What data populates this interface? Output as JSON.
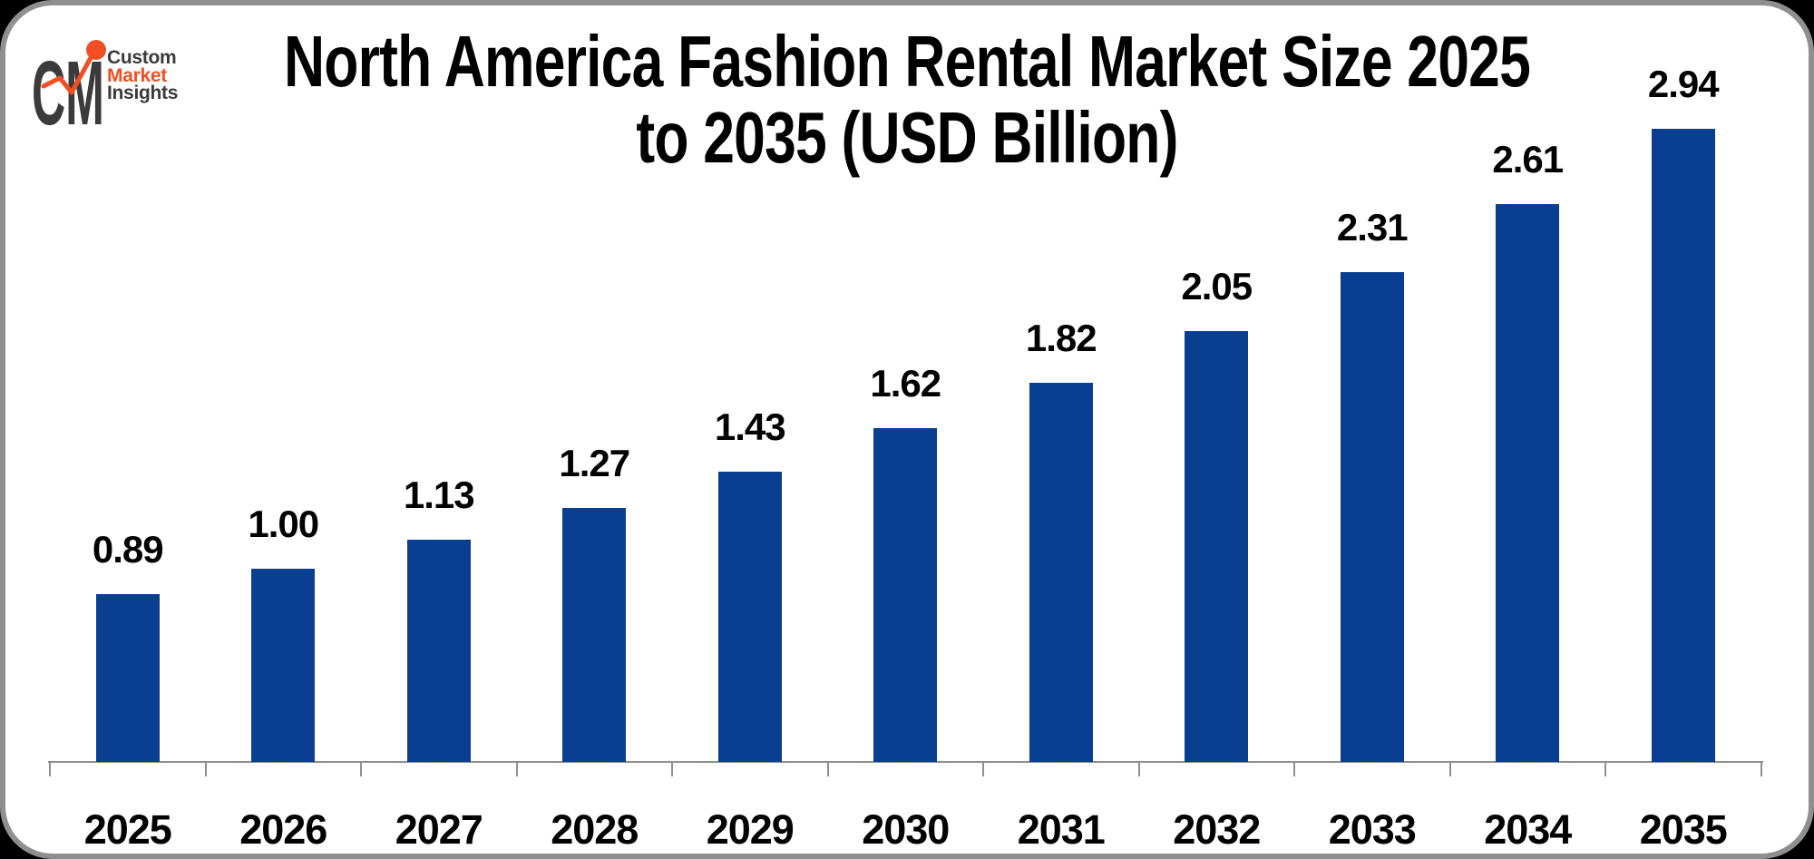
{
  "logo": {
    "monogram": "CM",
    "lines": [
      "Custom",
      "Market",
      "Insights"
    ]
  },
  "title": {
    "lines": [
      "North America Fashion Rental Market Size 2025",
      "to 2035 (USD Billion)"
    ]
  },
  "colors": {
    "bar": "#0a3e91",
    "axis_line": "#8f8f8f",
    "title_text": "#000000",
    "logo_dark": "#3b3b3b",
    "logo_orange": "#f04e23",
    "card_border": "#8f8f8f",
    "background": "#ffffff"
  },
  "chart_data": {
    "type": "bar",
    "title": "North America Fashion Rental Market Size 2025 to 2035 (USD Billion)",
    "unit": "USD Billion",
    "categories": [
      "2025",
      "2026",
      "2027",
      "2028",
      "2029",
      "2030",
      "2031",
      "2032",
      "2033",
      "2034",
      "2035"
    ],
    "values": [
      0.89,
      1.0,
      1.13,
      1.27,
      1.43,
      1.62,
      1.82,
      2.05,
      2.31,
      2.61,
      2.94
    ],
    "data_labels": [
      "0.89",
      "1.00",
      "1.13",
      "1.27",
      "1.43",
      "1.62",
      "1.82",
      "2.05",
      "2.31",
      "2.61",
      "2.94"
    ],
    "xlabel": "",
    "ylabel": "",
    "ylim": [
      0.15,
      3.0
    ],
    "grid": false,
    "legend": false,
    "yaxis_visible": false
  }
}
